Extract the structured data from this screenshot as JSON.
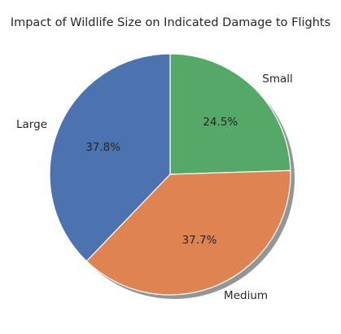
{
  "chart_data": {
    "type": "pie",
    "title": "Impact of Wildlife Size on Indicated Damage to Flights",
    "categories": [
      "Small",
      "Medium",
      "Large"
    ],
    "values": [
      24.5,
      37.7,
      37.8
    ],
    "value_labels": [
      "24.5%",
      "37.7%",
      "37.8%"
    ],
    "colors": [
      "#55a868",
      "#dd8452",
      "#4c72b0"
    ],
    "start_angle_deg": 90,
    "direction": "clockwise",
    "shadow": true,
    "legend": "none"
  }
}
